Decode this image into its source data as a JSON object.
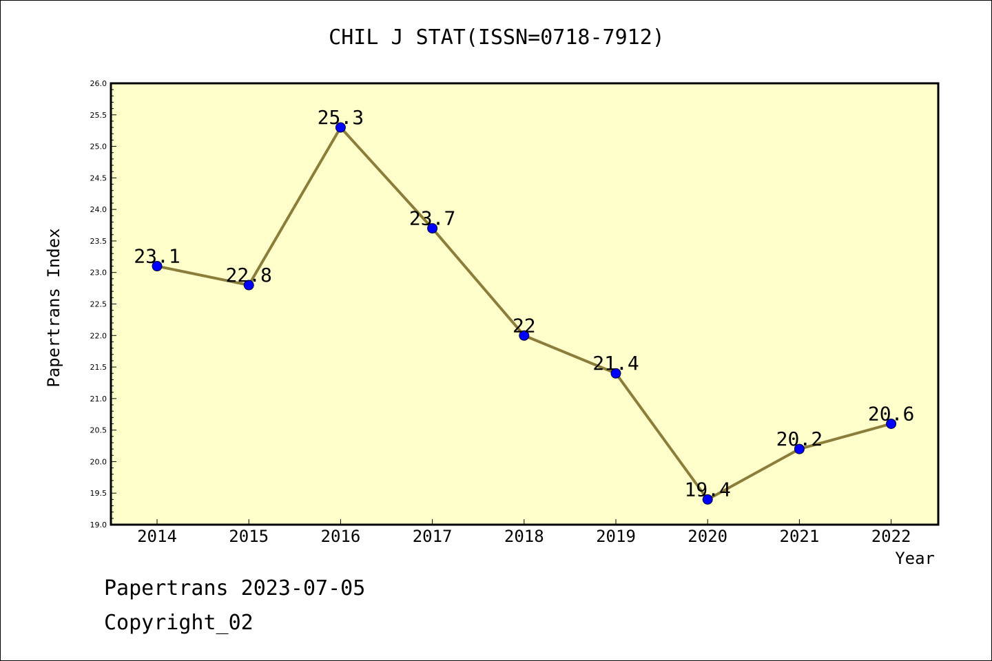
{
  "chart_data": {
    "type": "line",
    "title": "CHIL J STAT(ISSN=0718-7912)",
    "xlabel": "Year",
    "ylabel": "Papertrans Index",
    "x": [
      "2014",
      "2015",
      "2016",
      "2017",
      "2018",
      "2019",
      "2020",
      "2021",
      "2022"
    ],
    "series": [
      {
        "values": [
          23.1,
          22.8,
          25.3,
          23.7,
          22.0,
          21.4,
          19.4,
          20.2,
          20.6
        ],
        "data_labels": [
          "23.1",
          "22.8",
          "25.3",
          "23.7",
          "22",
          "21.4",
          "19.4",
          "20.2",
          "20.6"
        ]
      }
    ],
    "ylim": [
      19.0,
      26.0
    ],
    "yticks": [
      "19.0",
      "19.5",
      "20.0",
      "20.5",
      "21.0",
      "21.5",
      "22.0",
      "22.5",
      "23.0",
      "23.5",
      "24.0",
      "24.5",
      "25.0",
      "25.5",
      "26.0"
    ],
    "grid": false,
    "colors": {
      "plot_background": "#ffffcc",
      "line": "#8b7d3a",
      "marker": "#0000ff"
    }
  },
  "footer": {
    "line1": "Papertrans 2023-07-05",
    "line2": "Copyright_02"
  }
}
